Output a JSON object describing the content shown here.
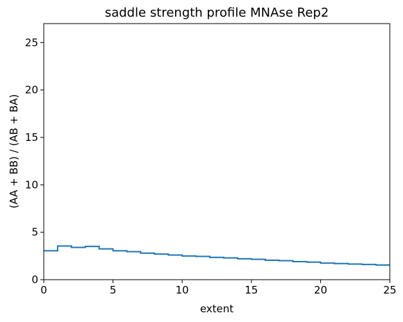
{
  "chart_data": {
    "type": "line",
    "drawstyle": "steps-post",
    "title": "saddle strength profile MNAse Rep2",
    "xlabel": "extent",
    "ylabel": "(AA + BB) / (AB + BA)",
    "xlim": [
      0,
      25
    ],
    "ylim": [
      0,
      27
    ],
    "xticks": [
      0,
      5,
      10,
      15,
      20,
      25
    ],
    "yticks": [
      0,
      5,
      10,
      15,
      20,
      25
    ],
    "grid": false,
    "legend": "none",
    "color": "#1f77b4",
    "series": [
      {
        "x": [
          0,
          1,
          2,
          3,
          4,
          5,
          6,
          7,
          8,
          9,
          10,
          11,
          12,
          13,
          14,
          15,
          16,
          17,
          18,
          19,
          20,
          21,
          22,
          23,
          24,
          25
        ],
        "y": [
          3.05,
          3.55,
          3.4,
          3.5,
          3.25,
          3.05,
          2.95,
          2.8,
          2.7,
          2.6,
          2.5,
          2.45,
          2.35,
          2.3,
          2.2,
          2.15,
          2.05,
          2.0,
          1.9,
          1.85,
          1.75,
          1.7,
          1.65,
          1.6,
          1.55,
          1.55
        ]
      }
    ]
  }
}
